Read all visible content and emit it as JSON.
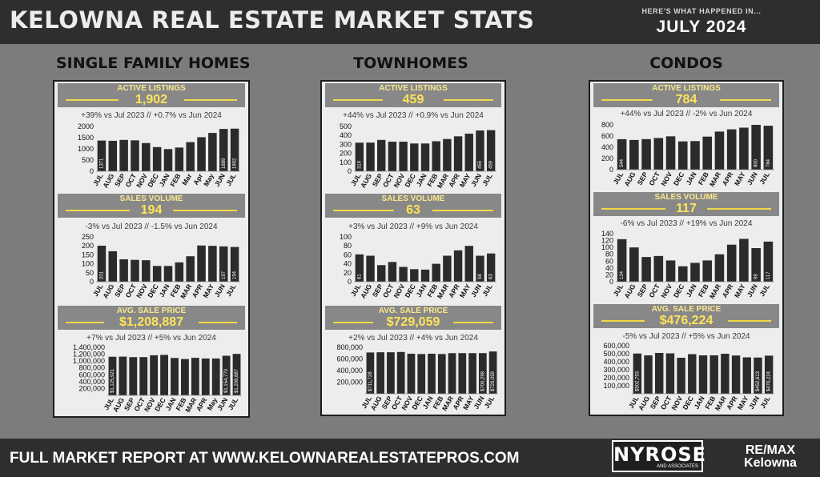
{
  "header": {
    "title": "KELOWNA REAL ESTATE MARKET STATS",
    "tagline": "HERE'S WHAT HAPPENED IN...",
    "month": "JULY 2024"
  },
  "footer": {
    "text": "FULL MARKET REPORT AT WWW.KELOWNAREALESTATEPROS.COM",
    "nyrose": "NYROSE",
    "nyrose_sub": "AND ASSOCIATES",
    "remax_line1": "RE/MAX",
    "remax_line2": "Kelowna"
  },
  "columns": [
    {
      "title": "SINGLE FAMILY HOMES",
      "active_listings": {
        "label": "ACTIVE LISTINGS",
        "value": "1,902",
        "change": "+39% vs Jul 2023 // +0.7% vs Jun 2024"
      },
      "sales_volume": {
        "label": "SALES VOLUME",
        "value": "194",
        "change": "-3% vs  Jul 2023 // -1.5% vs Jun 2024"
      },
      "avg_sale_price": {
        "label": "AVG. SALE PRICE",
        "value": "$1,208,887",
        "change": "+7% vs  Jul 2023 // +5% vs Jun 2024"
      }
    },
    {
      "title": "TOWNHOMES",
      "active_listings": {
        "label": "ACTIVE LISTINGS",
        "value": "459",
        "change": "+44% vs Jul 2023 // +0.9% vs Jun 2024"
      },
      "sales_volume": {
        "label": "SALES VOLUME",
        "value": "63",
        "change": "+3% vs  Jul 2023 // +9% vs Jun 2024"
      },
      "avg_sale_price": {
        "label": "AVG. SALE PRICE",
        "value": "$729,059",
        "change": "+2% vs  Jul 2023 // +4% vs Jun 2024"
      }
    },
    {
      "title": "CONDOS",
      "active_listings": {
        "label": "ACTIVE LISTINGS",
        "value": "784",
        "change": "+44% vs Jul 2023 // -2% vs Jun 2024"
      },
      "sales_volume": {
        "label": "SALES VOLUME",
        "value": "117",
        "change": "-6% vs  Jul 2023 // +19% vs Jun 2024"
      },
      "avg_sale_price": {
        "label": "AVG. SALE PRICE",
        "value": "$476,224",
        "change": "-5% vs  Jul 2023 // +5% vs Jun 2024"
      }
    }
  ],
  "chart_data": [
    {
      "id": "sfh-listings",
      "type": "bar",
      "categories": [
        "JUL",
        "AUG",
        "SEP",
        "OCT",
        "NOV",
        "DEC",
        "JAN",
        "FEB",
        "Mar",
        "Apr",
        "May",
        "JUN",
        "JUL"
      ],
      "values": [
        1371,
        1360,
        1400,
        1380,
        1260,
        1080,
        990,
        1060,
        1300,
        1520,
        1710,
        1889,
        1902
      ],
      "ylim": [
        0,
        2000
      ],
      "yticks": [
        "0",
        "500",
        "1000",
        "1500",
        "2000"
      ],
      "bar_labels": [
        "1371",
        "",
        "",
        "",
        "",
        "",
        "",
        "",
        "",
        "",
        "",
        "1889",
        "1902"
      ]
    },
    {
      "id": "sfh-sales",
      "type": "bar",
      "categories": [
        "JUL",
        "AUG",
        "SEP",
        "OCT",
        "NOV",
        "DEC",
        "JAN",
        "FEB",
        "MAR",
        "APR",
        "MAY",
        "JUN",
        "JUL"
      ],
      "values": [
        201,
        170,
        125,
        122,
        120,
        88,
        88,
        108,
        142,
        202,
        200,
        197,
        194
      ],
      "ylim": [
        0,
        250
      ],
      "yticks": [
        "0",
        "50",
        "100",
        "150",
        "200",
        "250"
      ],
      "bar_labels": [
        "201",
        "",
        "",
        "",
        "",
        "",
        "",
        "",
        "",
        "",
        "",
        "197",
        "194"
      ]
    },
    {
      "id": "sfh-price",
      "type": "bar",
      "categories": [
        "JUL",
        "AUG",
        "SEP",
        "OCT",
        "NOV",
        "DEC",
        "JAN",
        "FEB",
        "MAR",
        "APR",
        "May",
        "JUN",
        "JUL"
      ],
      "values": [
        1125921,
        1130000,
        1115000,
        1115000,
        1170000,
        1180000,
        1090000,
        1060000,
        1095000,
        1075000,
        1075000,
        1154770,
        1208887
      ],
      "ylim": [
        0,
        1400000
      ],
      "yticks": [
        "200,000",
        "400,000",
        "600,000",
        "800,000",
        "1,000,000",
        "1,200,000",
        "1,400,000"
      ],
      "bar_labels": [
        "$1,125,921",
        "",
        "",
        "",
        "",
        "",
        "",
        "",
        "",
        "",
        "",
        "$1,154,770",
        "$1,208,887"
      ]
    },
    {
      "id": "th-listings",
      "type": "bar",
      "categories": [
        "JUL",
        "AUG",
        "SEP",
        "OCT",
        "NOV",
        "DEC",
        "JAN",
        "FEB",
        "MAR",
        "APR",
        "MAY",
        "JUN",
        "JUL"
      ],
      "values": [
        319,
        320,
        350,
        330,
        330,
        310,
        310,
        335,
        360,
        390,
        420,
        455,
        459
      ],
      "ylim": [
        0,
        500
      ],
      "yticks": [
        "0",
        "100",
        "200",
        "300",
        "400",
        "500"
      ],
      "bar_labels": [
        "319",
        "",
        "",
        "",
        "",
        "",
        "",
        "",
        "",
        "",
        "",
        "455",
        "459"
      ]
    },
    {
      "id": "th-sales",
      "type": "bar",
      "categories": [
        "JUL",
        "AUG",
        "SEP",
        "OCT",
        "NOV",
        "DEC",
        "JAN",
        "FEB",
        "MAR",
        "APR",
        "MAY",
        "JUN",
        "JUL"
      ],
      "values": [
        61,
        58,
        37,
        44,
        33,
        28,
        27,
        40,
        58,
        70,
        80,
        58,
        63
      ],
      "ylim": [
        0,
        100
      ],
      "yticks": [
        "0",
        "20",
        "40",
        "60",
        "80",
        "100"
      ],
      "bar_labels": [
        "61",
        "",
        "",
        "",
        "",
        "",
        "",
        "",
        "",
        "",
        "",
        "58",
        "63"
      ]
    },
    {
      "id": "th-price",
      "type": "bar",
      "categories": [
        "JUL",
        "AUG",
        "SEP",
        "OCT",
        "NOV",
        "DEC",
        "JAN",
        "FEB",
        "MAR",
        "APR",
        "MAY",
        "JUN",
        "JUL"
      ],
      "values": [
        711728,
        715000,
        715000,
        720000,
        690000,
        685000,
        690000,
        685000,
        700000,
        700000,
        700000,
        700298,
        729059
      ],
      "ylim": [
        0,
        800000
      ],
      "yticks": [
        "200,000",
        "400,000",
        "600,000",
        "800,000"
      ],
      "bar_labels": [
        "$711,728",
        "",
        "",
        "",
        "",
        "",
        "",
        "",
        "",
        "",
        "",
        "$700,298",
        "$729,059"
      ]
    },
    {
      "id": "condo-listings",
      "type": "bar",
      "categories": [
        "JUL",
        "AUG",
        "SEP",
        "OCT",
        "NOV",
        "DEC",
        "JAN",
        "FEB",
        "MAR",
        "APR",
        "MAY",
        "JUN",
        "JUL"
      ],
      "values": [
        544,
        530,
        545,
        565,
        595,
        505,
        510,
        590,
        680,
        720,
        750,
        800,
        784
      ],
      "ylim": [
        0,
        800
      ],
      "yticks": [
        "0",
        "200",
        "400",
        "600",
        "800"
      ],
      "bar_labels": [
        "544",
        "",
        "",
        "",
        "",
        "",
        "",
        "",
        "",
        "",
        "",
        "800",
        "784"
      ]
    },
    {
      "id": "condo-sales",
      "type": "bar",
      "categories": [
        "JUL",
        "AUG",
        "SEP",
        "OCT",
        "NOV",
        "DEC",
        "JAN",
        "FEB",
        "MAR",
        "APR",
        "MAY",
        "JUN",
        "JUL"
      ],
      "values": [
        124,
        100,
        72,
        75,
        62,
        45,
        55,
        62,
        80,
        108,
        125,
        98,
        117
      ],
      "ylim": [
        0,
        140
      ],
      "yticks": [
        "0",
        "20",
        "40",
        "60",
        "80",
        "100",
        "120",
        "140"
      ],
      "bar_labels": [
        "124",
        "",
        "",
        "",
        "",
        "",
        "",
        "",
        "",
        "",
        "",
        "98",
        "117"
      ]
    },
    {
      "id": "condo-price",
      "type": "bar",
      "categories": [
        "JUL",
        "AUG",
        "SEP",
        "OCT",
        "NOV",
        "DEC",
        "JAN",
        "FEB",
        "MAR",
        "APR",
        "MAY",
        "JUN",
        "JUL"
      ],
      "values": [
        502793,
        480000,
        510000,
        505000,
        450000,
        495000,
        480000,
        480000,
        500000,
        478000,
        455000,
        452613,
        476224
      ],
      "ylim": [
        0,
        600000
      ],
      "yticks": [
        "100,000",
        "200,000",
        "300,000",
        "400,000",
        "500,000",
        "600,000"
      ],
      "bar_labels": [
        "$502,793",
        "",
        "",
        "",
        "",
        "",
        "",
        "",
        "",
        "",
        "",
        "$452,613",
        "$476,224"
      ]
    }
  ]
}
